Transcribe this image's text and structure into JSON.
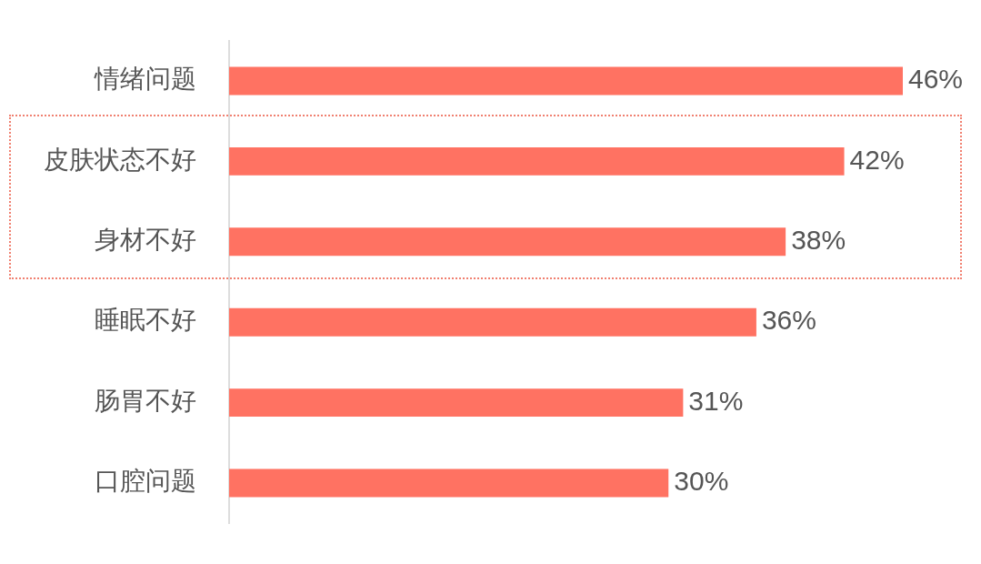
{
  "chart_data": {
    "type": "bar",
    "orientation": "horizontal",
    "categories": [
      "情绪问题",
      "皮肤状态不好",
      "身材不好",
      "睡眠不好",
      "肠胃不好",
      "口腔问题"
    ],
    "values": [
      46,
      42,
      38,
      36,
      31,
      30
    ],
    "value_labels": [
      "46%",
      "42%",
      "38%",
      "36%",
      "31%",
      "30%"
    ],
    "color": "#ff7262",
    "tick_labels": "y"
  }
}
